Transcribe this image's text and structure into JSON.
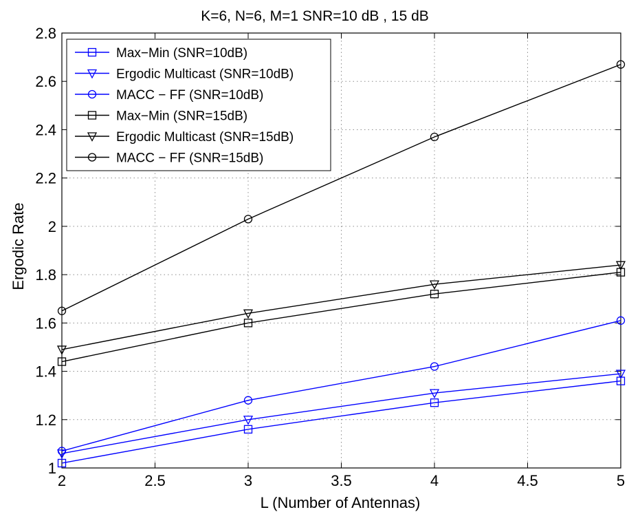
{
  "chart_data": {
    "type": "line",
    "title": "K=6, N=6, M=1 SNR=10 dB , 15 dB",
    "xlabel": "L (Number of Antennas)",
    "ylabel": "Ergodic Rate",
    "xlim": [
      2,
      5
    ],
    "ylim": [
      1,
      2.8
    ],
    "xticks": [
      "2",
      "2.5",
      "3",
      "3.5",
      "4",
      "4.5",
      "5"
    ],
    "yticks": [
      "1",
      "1.2",
      "1.4",
      "1.6",
      "1.8",
      "2",
      "2.2",
      "2.4",
      "2.6",
      "2.8"
    ],
    "grid": true,
    "legend_position": "top-left",
    "x": [
      2,
      3,
      4,
      5
    ],
    "series": [
      {
        "name": "Max−Min (SNR=10dB)",
        "color": "#0000ff",
        "marker": "square",
        "values": [
          1.02,
          1.16,
          1.27,
          1.36
        ]
      },
      {
        "name": "Ergodic Multicast  (SNR=10dB)",
        "color": "#0000ff",
        "marker": "triangle-down",
        "values": [
          1.06,
          1.2,
          1.31,
          1.39
        ]
      },
      {
        "name": "MACC − FF  (SNR=10dB)",
        "color": "#0000ff",
        "marker": "circle",
        "values": [
          1.07,
          1.28,
          1.42,
          1.61
        ]
      },
      {
        "name": "Max−Min (SNR=15dB)",
        "color": "#000000",
        "marker": "square",
        "values": [
          1.44,
          1.6,
          1.72,
          1.81
        ]
      },
      {
        "name": "Ergodic Multicast  (SNR=15dB)",
        "color": "#000000",
        "marker": "triangle-down",
        "values": [
          1.49,
          1.64,
          1.76,
          1.84
        ]
      },
      {
        "name": "MACC − FF  (SNR=15dB)",
        "color": "#000000",
        "marker": "circle",
        "values": [
          1.65,
          2.03,
          2.37,
          2.67
        ]
      }
    ]
  }
}
